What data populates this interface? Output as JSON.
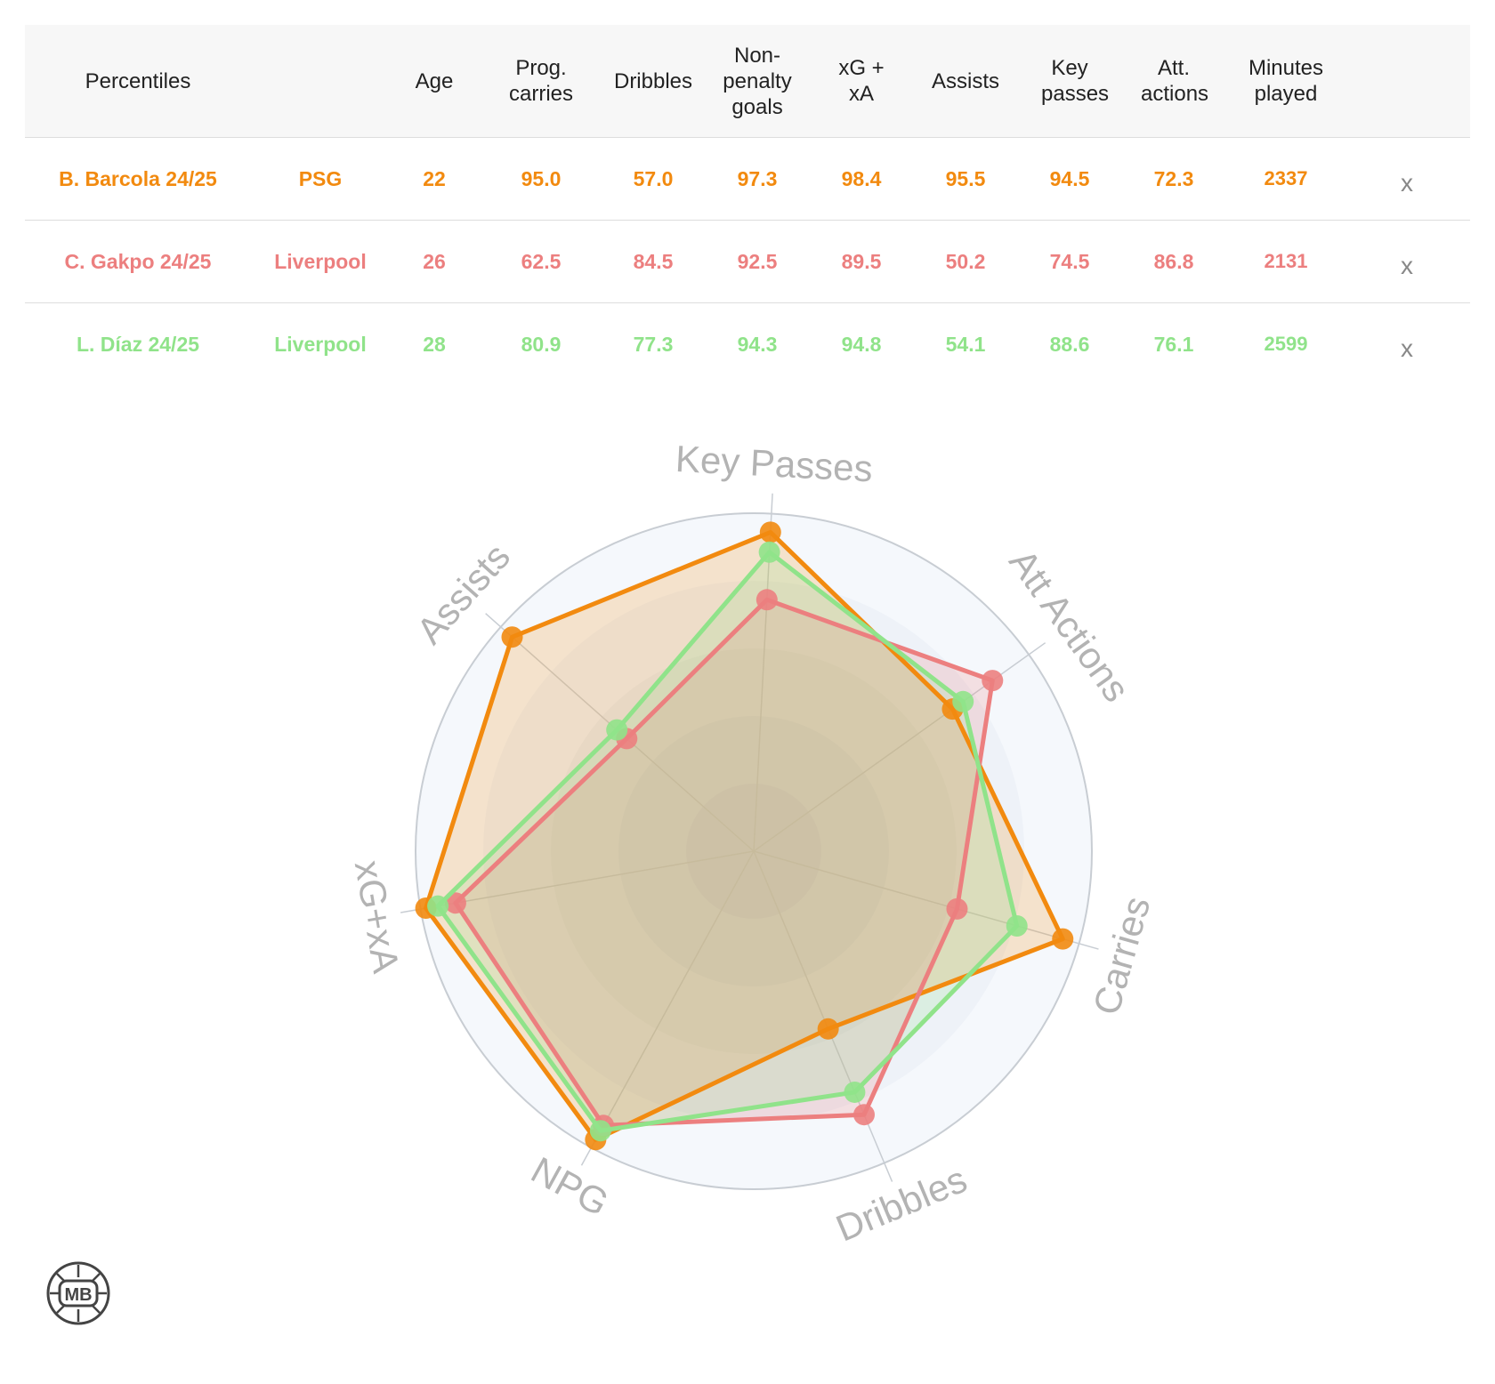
{
  "table": {
    "headers": [
      "Percentiles",
      "",
      "Age",
      "Prog. carries",
      "Dribbles",
      "Non-penalty goals",
      "xG + xA",
      "Assists",
      "Key passes",
      "Att. actions",
      "Minutes played"
    ],
    "rows": [
      {
        "player": "B. Barcola 24/25",
        "team": "PSG",
        "age": "22",
        "prog_carries": "95.0",
        "dribbles": "57.0",
        "npg": "97.3",
        "xgxa": "98.4",
        "assists": "95.5",
        "key_passes": "94.5",
        "att_actions": "72.3",
        "minutes": "2337",
        "remove": "x",
        "color": "#f28a0f"
      },
      {
        "player": "C. Gakpo 24/25",
        "team": "Liverpool",
        "age": "26",
        "prog_carries": "62.5",
        "dribbles": "84.5",
        "npg": "92.5",
        "xgxa": "89.5",
        "assists": "50.2",
        "key_passes": "74.5",
        "att_actions": "86.8",
        "minutes": "2131",
        "remove": "x",
        "color": "#ec7f7f"
      },
      {
        "player": "L. Díaz 24/25",
        "team": "Liverpool",
        "age": "28",
        "prog_carries": "80.9",
        "dribbles": "77.3",
        "npg": "94.3",
        "xgxa": "94.8",
        "assists": "54.1",
        "key_passes": "88.6",
        "att_actions": "76.1",
        "minutes": "2599",
        "remove": "x",
        "color": "#90e38a"
      }
    ]
  },
  "chart_data": {
    "type": "radar",
    "axes": [
      "Key Passes",
      "Att Actions",
      "Carries",
      "Dribbles",
      "NPG",
      "xG+xA",
      "Assists"
    ],
    "range": [
      0,
      100
    ],
    "series": [
      {
        "name": "B. Barcola 24/25",
        "color": "#f28a0f",
        "values": [
          94.5,
          72.3,
          95.0,
          57.0,
          97.3,
          98.4,
          95.5
        ]
      },
      {
        "name": "C. Gakpo 24/25",
        "color": "#ec7f7f",
        "values": [
          74.5,
          86.8,
          62.5,
          84.5,
          92.5,
          89.5,
          50.2
        ]
      },
      {
        "name": "L. Díaz 24/25",
        "color": "#90e38a",
        "values": [
          88.6,
          76.1,
          80.9,
          77.3,
          94.3,
          94.8,
          54.1
        ]
      }
    ]
  },
  "logo": {
    "text": "MB",
    "icon": "mb-logo-icon"
  }
}
